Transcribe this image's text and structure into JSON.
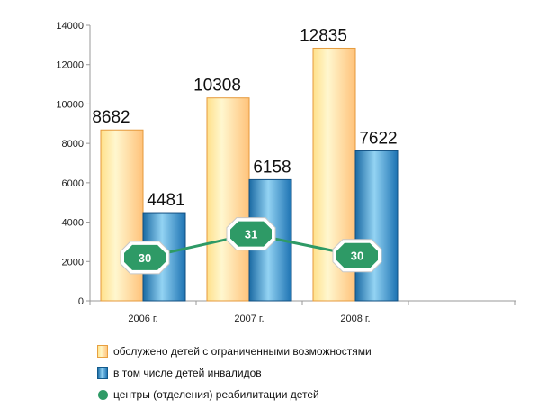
{
  "chart_data": {
    "type": "bar",
    "categories": [
      "2006 г.",
      "2007 г.",
      "2008 г."
    ],
    "series": [
      {
        "name": "обслужено детей с ограниченными возможностями",
        "values": [
          8682,
          10308,
          12835
        ],
        "color": "#ffd27a"
      },
      {
        "name": "в том числе детей инвалидов",
        "values": [
          4481,
          6158,
          7622
        ],
        "color": "#3f8fc8"
      }
    ],
    "line_series": {
      "name": "центры (отделения) реабилитации детей",
      "values": [
        30,
        31,
        30
      ],
      "plot_values": [
        2200,
        3400,
        2300
      ],
      "color": "#2e9a66"
    },
    "yticks": [
      "0",
      "2000",
      "4000",
      "6000",
      "8000",
      "10000",
      "12000",
      "14000"
    ],
    "ylim": [
      0,
      14000
    ],
    "title": "",
    "xlabel": "",
    "ylabel": "",
    "legend_position": "bottom"
  }
}
